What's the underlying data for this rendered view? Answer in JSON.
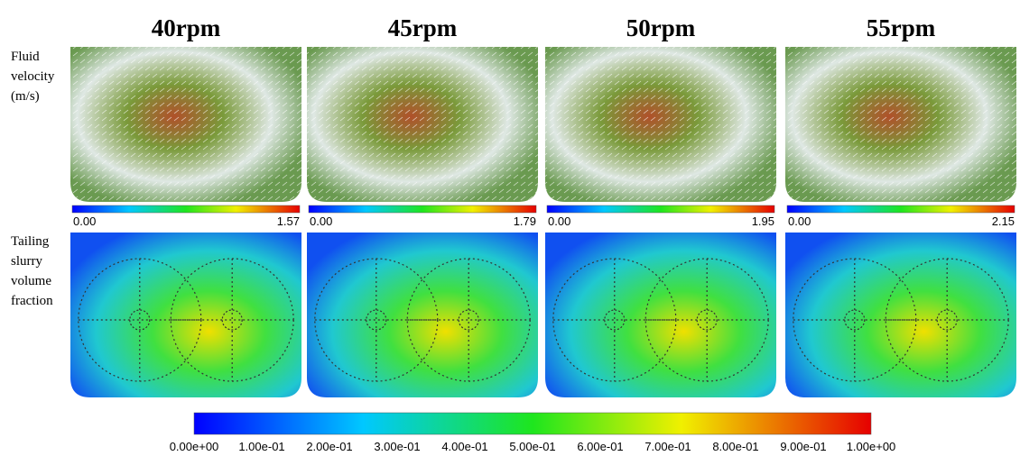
{
  "row_labels": [
    {
      "lines": [
        "Fluid",
        "velocity",
        "(m/s)"
      ]
    },
    {
      "lines": [
        "Tailing",
        "slurry",
        "volume",
        "fraction"
      ]
    }
  ],
  "panels": [
    {
      "title": "40rpm",
      "min": "0.00",
      "max": "1.57"
    },
    {
      "title": "45rpm",
      "min": "0.00",
      "max": "1.79"
    },
    {
      "title": "50rpm",
      "min": "0.00",
      "max": "1.95"
    },
    {
      "title": "55rpm",
      "min": "0.00",
      "max": "2.15"
    }
  ],
  "colorbar": {
    "ticks": [
      "0.00e+00",
      "1.00e-01",
      "2.00e-01",
      "3.00e-01",
      "4.00e-01",
      "5.00e-01",
      "6.00e-01",
      "7.00e-01",
      "8.00e-01",
      "9.00e-01",
      "1.00e+00"
    ]
  }
}
